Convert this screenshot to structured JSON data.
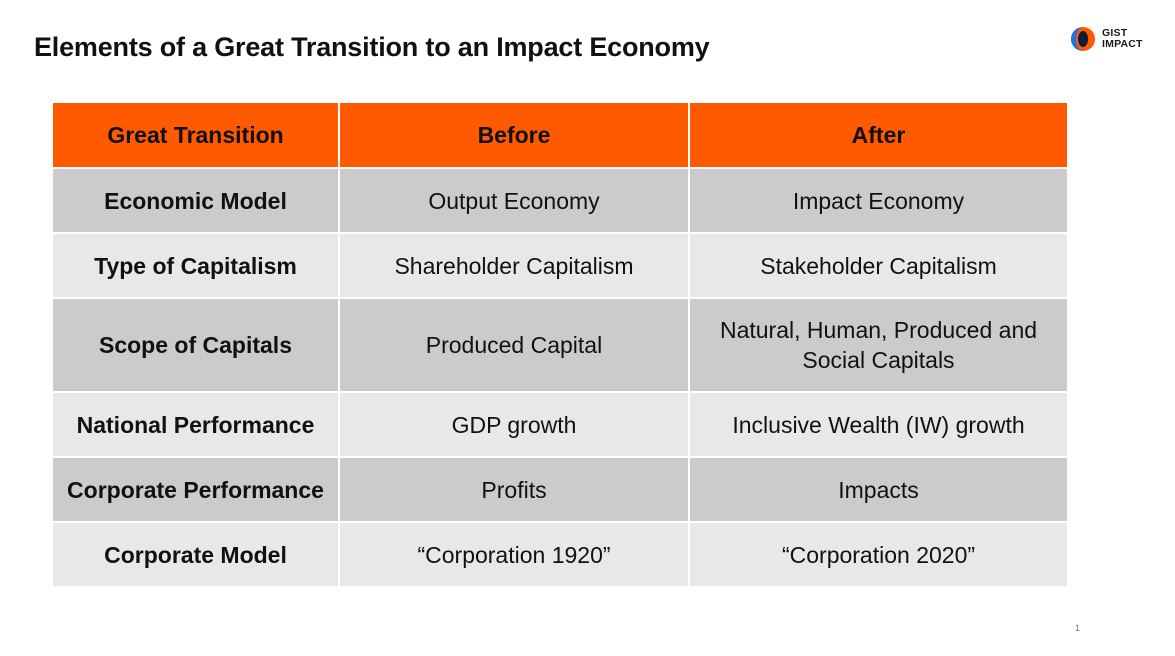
{
  "title": "Elements of a Great Transition to an Impact Economy",
  "logo": {
    "line1": "GIST",
    "line2": "IMPACT",
    "colors": {
      "orange": "#ff5a00",
      "blue": "#1a73e8",
      "navy": "#0b1d3a"
    }
  },
  "table": {
    "headers": [
      "Great Transition",
      "Before",
      "After"
    ],
    "rows": [
      {
        "label": "Economic Model",
        "before": "Output Economy",
        "after": "Impact Economy"
      },
      {
        "label": "Type of Capitalism",
        "before": "Shareholder Capitalism",
        "after": "Stakeholder Capitalism"
      },
      {
        "label": "Scope of Capitals",
        "before": "Produced Capital",
        "after": "Natural, Human, Produced and Social Capitals"
      },
      {
        "label": "National Performance",
        "before": "GDP growth",
        "after": "Inclusive Wealth (IW) growth"
      },
      {
        "label": "Corporate Performance",
        "before": "Profits",
        "after": "Impacts"
      },
      {
        "label": "Corporate Model",
        "before": "“Corporation 1920”",
        "after": "“Corporation 2020”"
      }
    ]
  },
  "page_number": "1",
  "colors": {
    "header_bg": "#ff5a00",
    "row_dark": "#cbcbcd",
    "row_light": "#e8e8e9"
  }
}
